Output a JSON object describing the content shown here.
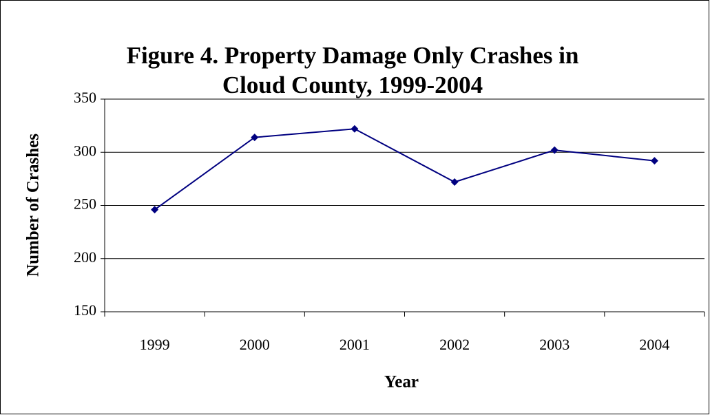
{
  "chart_data": {
    "type": "line",
    "title": [
      "Figure 4.  Property Damage Only Crashes in",
      "Cloud County, 1999-2004"
    ],
    "x_label": "Year",
    "y_label": "Number of Crashes",
    "categories": [
      "1999",
      "2000",
      "2001",
      "2002",
      "2003",
      "2004"
    ],
    "series": [
      {
        "name": "Property Damage Only Crashes",
        "color": "#000080",
        "values": [
          246,
          314,
          322,
          272,
          302,
          292
        ]
      }
    ],
    "ylim": [
      150,
      350
    ],
    "yticks": [
      150,
      200,
      250,
      300,
      350
    ],
    "grid": true,
    "legend": false
  }
}
